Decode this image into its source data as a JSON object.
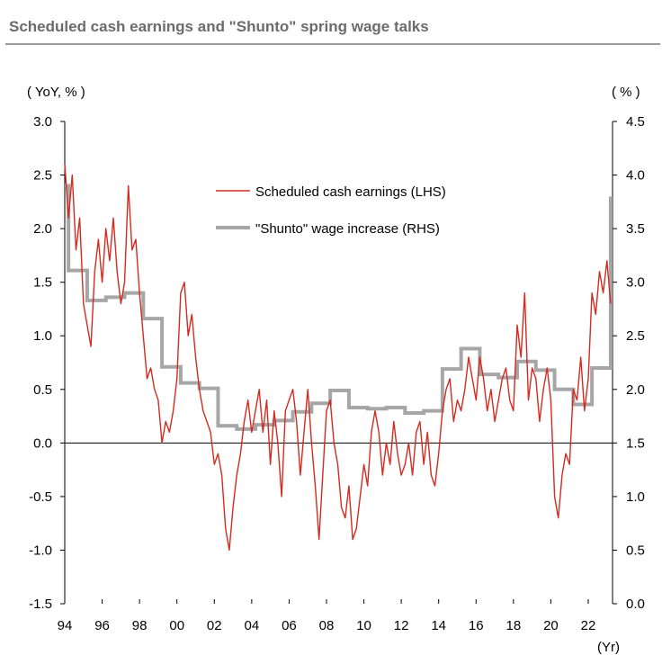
{
  "title": "Scheduled cash earnings and \"Shunto\" spring wage talks",
  "chart_data": {
    "type": "line",
    "ylabel_left": "( YoY, % )",
    "ylabel_right": "( % )",
    "xlabel": "(Yr)",
    "ylim_left": [
      -1.5,
      3.0
    ],
    "ylim_right": [
      0.0,
      4.5
    ],
    "xlim": [
      1994,
      2023.3
    ],
    "yticks_left": [
      "3.0",
      "2.5",
      "2.0",
      "1.5",
      "1.0",
      "0.5",
      "0.0",
      "-0.5",
      "-1.0",
      "-1.5"
    ],
    "yticks_left_values": [
      3.0,
      2.5,
      2.0,
      1.5,
      1.0,
      0.5,
      0.0,
      -0.5,
      -1.0,
      -1.5
    ],
    "yticks_right": [
      "4.5",
      "4.0",
      "3.5",
      "3.0",
      "2.5",
      "2.0",
      "1.5",
      "1.0",
      "0.5",
      "0.0"
    ],
    "yticks_right_values": [
      4.5,
      4.0,
      3.5,
      3.0,
      2.5,
      2.0,
      1.5,
      1.0,
      0.5,
      0.0
    ],
    "xticks": [
      "94",
      "96",
      "98",
      "00",
      "02",
      "04",
      "06",
      "08",
      "10",
      "12",
      "14",
      "16",
      "18",
      "20",
      "22"
    ],
    "xticks_values": [
      1994,
      1996,
      1998,
      2000,
      2002,
      2004,
      2006,
      2008,
      2010,
      2012,
      2014,
      2016,
      2018,
      2020,
      2022
    ],
    "legend_position": "upper-center",
    "series": [
      {
        "name": "Scheduled cash earnings (LHS)",
        "axis": "left",
        "color": "#d42a20",
        "x": [
          1994.0,
          1994.2,
          1994.4,
          1994.6,
          1994.8,
          1995.0,
          1995.2,
          1995.4,
          1995.6,
          1995.8,
          1996.0,
          1996.2,
          1996.4,
          1996.6,
          1996.8,
          1997.0,
          1997.2,
          1997.4,
          1997.6,
          1997.8,
          1998.0,
          1998.2,
          1998.4,
          1998.6,
          1998.8,
          1999.0,
          1999.2,
          1999.4,
          1999.6,
          1999.8,
          2000.0,
          2000.2,
          2000.4,
          2000.6,
          2000.8,
          2001.0,
          2001.2,
          2001.4,
          2001.6,
          2001.8,
          2002.0,
          2002.2,
          2002.4,
          2002.6,
          2002.8,
          2003.0,
          2003.2,
          2003.4,
          2003.6,
          2003.8,
          2004.0,
          2004.2,
          2004.4,
          2004.6,
          2004.8,
          2005.0,
          2005.2,
          2005.4,
          2005.6,
          2005.8,
          2006.0,
          2006.2,
          2006.4,
          2006.6,
          2006.8,
          2007.0,
          2007.2,
          2007.4,
          2007.6,
          2007.8,
          2008.0,
          2008.2,
          2008.4,
          2008.6,
          2008.8,
          2009.0,
          2009.2,
          2009.4,
          2009.6,
          2009.8,
          2010.0,
          2010.2,
          2010.4,
          2010.6,
          2010.8,
          2011.0,
          2011.2,
          2011.4,
          2011.6,
          2011.8,
          2012.0,
          2012.2,
          2012.4,
          2012.6,
          2012.8,
          2013.0,
          2013.2,
          2013.4,
          2013.6,
          2013.8,
          2014.0,
          2014.2,
          2014.4,
          2014.6,
          2014.8,
          2015.0,
          2015.2,
          2015.4,
          2015.6,
          2015.8,
          2016.0,
          2016.2,
          2016.4,
          2016.6,
          2016.8,
          2017.0,
          2017.2,
          2017.4,
          2017.6,
          2017.8,
          2018.0,
          2018.2,
          2018.4,
          2018.6,
          2018.8,
          2019.0,
          2019.2,
          2019.4,
          2019.6,
          2019.8,
          2020.0,
          2020.2,
          2020.4,
          2020.6,
          2020.8,
          2021.0,
          2021.2,
          2021.4,
          2021.6,
          2021.8,
          2022.0,
          2022.2,
          2022.4,
          2022.6,
          2022.8,
          2023.0,
          2023.2
        ],
        "values": [
          2.6,
          2.1,
          2.5,
          1.8,
          2.1,
          1.3,
          1.1,
          0.9,
          1.6,
          1.9,
          1.5,
          2.0,
          1.7,
          2.1,
          1.6,
          1.3,
          1.5,
          2.4,
          1.8,
          1.9,
          1.4,
          1.0,
          0.6,
          0.7,
          0.5,
          0.4,
          0.0,
          0.2,
          0.1,
          0.3,
          0.6,
          1.4,
          1.5,
          1.0,
          1.2,
          0.8,
          0.5,
          0.3,
          0.2,
          0.1,
          -0.2,
          -0.1,
          -0.3,
          -0.8,
          -1.0,
          -0.6,
          -0.3,
          -0.1,
          0.2,
          0.4,
          0.1,
          0.3,
          0.5,
          0.1,
          0.4,
          -0.2,
          0.3,
          0.0,
          -0.5,
          0.3,
          0.4,
          0.5,
          0.2,
          -0.3,
          0.1,
          0.5,
          0.0,
          -0.4,
          -0.9,
          -0.3,
          0.3,
          0.4,
          0.0,
          -0.2,
          -0.6,
          -0.7,
          -0.4,
          -0.9,
          -0.8,
          -0.5,
          -0.2,
          -0.4,
          0.1,
          0.3,
          0.1,
          -0.3,
          0.0,
          -0.2,
          0.2,
          -0.1,
          -0.3,
          -0.2,
          0.0,
          -0.3,
          0.1,
          0.2,
          -0.2,
          0.1,
          -0.3,
          -0.4,
          -0.1,
          0.3,
          0.5,
          0.6,
          0.2,
          0.4,
          0.3,
          0.5,
          0.8,
          0.6,
          0.4,
          0.8,
          0.6,
          0.3,
          0.5,
          0.2,
          0.4,
          0.6,
          0.7,
          0.4,
          0.3,
          1.1,
          0.8,
          1.4,
          0.4,
          0.7,
          0.6,
          0.2,
          0.5,
          0.7,
          0.4,
          -0.5,
          -0.7,
          -0.3,
          -0.1,
          -0.2,
          0.5,
          0.4,
          0.8,
          0.3,
          0.6,
          1.4,
          1.2,
          1.6,
          1.4,
          1.7,
          1.3
        ]
      },
      {
        "name": "\"Shunto\" wage increase (RHS)",
        "axis": "right",
        "color": "#a6a6a6",
        "step": true,
        "x": [
          1994.0,
          1994.2,
          1995.2,
          1996.2,
          1997.2,
          1998.2,
          1999.2,
          2000.2,
          2001.2,
          2002.2,
          2003.2,
          2004.2,
          2005.2,
          2006.2,
          2007.2,
          2008.2,
          2009.2,
          2010.2,
          2011.2,
          2012.2,
          2013.2,
          2014.2,
          2015.2,
          2016.2,
          2017.2,
          2018.2,
          2019.2,
          2020.2,
          2021.2,
          2022.2,
          2023.2
        ],
        "values": [
          3.9,
          3.11,
          2.83,
          2.86,
          2.9,
          2.66,
          2.21,
          2.06,
          2.01,
          1.66,
          1.63,
          1.67,
          1.71,
          1.79,
          1.87,
          1.99,
          1.83,
          1.82,
          1.83,
          1.78,
          1.8,
          2.19,
          2.38,
          2.14,
          2.11,
          2.26,
          2.18,
          2.0,
          1.86,
          2.2,
          3.8
        ]
      }
    ]
  }
}
